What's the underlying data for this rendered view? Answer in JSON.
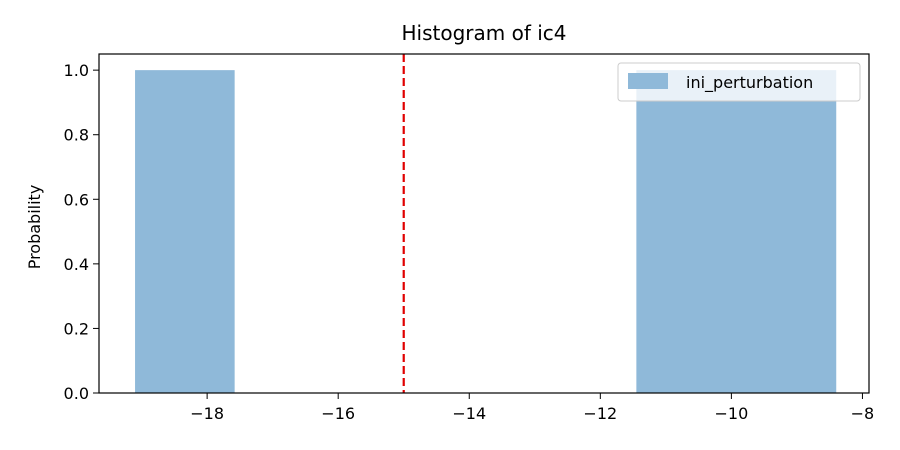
{
  "chart_data": {
    "type": "bar",
    "title": "Histogram of ic4",
    "xlabel": "",
    "ylabel": "Probability",
    "xlim": [
      -19.65,
      -7.9
    ],
    "ylim": [
      0,
      1.05
    ],
    "xticks": [
      -18,
      -16,
      -14,
      -12,
      -10,
      -8
    ],
    "xtick_labels": [
      "−18",
      "−16",
      "−14",
      "−12",
      "−10",
      "−8"
    ],
    "yticks": [
      0.0,
      0.2,
      0.4,
      0.6,
      0.8,
      1.0
    ],
    "ytick_labels": [
      "0.0",
      "0.2",
      "0.4",
      "0.6",
      "0.8",
      "1.0"
    ],
    "series": [
      {
        "name": "ini_perturbation",
        "color": "#8fb9d9",
        "bins": [
          {
            "x0": -19.1,
            "x1": -17.58,
            "value": 1.0
          },
          {
            "x0": -11.45,
            "x1": -8.4,
            "value": 1.0
          }
        ]
      }
    ],
    "reference_line": {
      "x": -15.0,
      "color": "#e00000",
      "style": "dashed"
    },
    "legend": {
      "position": "top-right",
      "entries": [
        "ini_perturbation"
      ]
    },
    "grid": false
  }
}
